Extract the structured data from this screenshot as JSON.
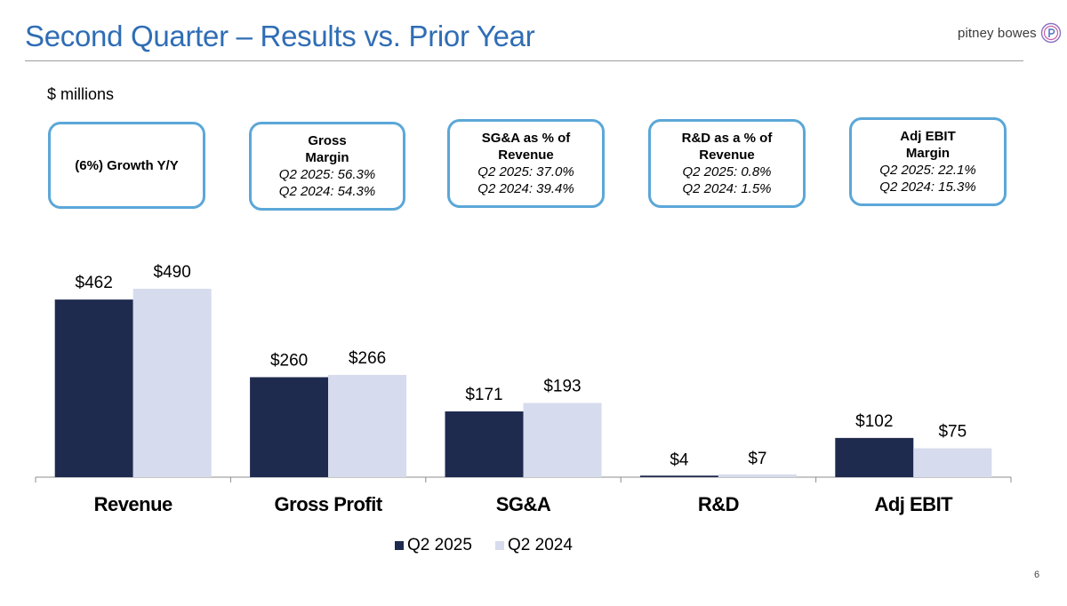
{
  "slide": {
    "title": "Second Quarter – Results vs. Prior Year",
    "units": "$ millions",
    "page_number": "6",
    "logo_text": "pitney bowes"
  },
  "callouts": [
    {
      "head": [
        "(6%) Growth Y/Y"
      ],
      "lines": []
    },
    {
      "head": [
        "Gross",
        "Margin"
      ],
      "lines": [
        "Q2 2025: 56.3%",
        "Q2 2024: 54.3%"
      ]
    },
    {
      "head": [
        "SG&A as % of",
        "Revenue"
      ],
      "lines": [
        "Q2 2025: 37.0%",
        "Q2 2024: 39.4%"
      ]
    },
    {
      "head": [
        "R&D as a % of",
        "Revenue"
      ],
      "lines": [
        "Q2 2025: 0.8%",
        "Q2 2024: 1.5%"
      ]
    },
    {
      "head": [
        "Adj EBIT",
        "Margin"
      ],
      "lines": [
        "Q2 2025: 22.1%",
        "Q2 2024: 15.3%"
      ]
    }
  ],
  "chart_data": {
    "type": "bar",
    "categories": [
      "Revenue",
      "Gross Profit",
      "SG&A",
      "R&D",
      "Adj EBIT"
    ],
    "series": [
      {
        "name": "Q2 2025",
        "values": [
          462,
          260,
          171,
          4,
          102
        ],
        "labels": [
          "$462",
          "$260",
          "$171",
          "$4",
          "$102"
        ],
        "color": "#1f2a4f"
      },
      {
        "name": "Q2 2024",
        "values": [
          490,
          266,
          193,
          7,
          75
        ],
        "labels": [
          "$490",
          "$266",
          "$193",
          "$7",
          "$75"
        ],
        "color": "#d6dbed"
      }
    ],
    "ylim": [
      0,
      490
    ],
    "grid": false,
    "legend": "bottom"
  },
  "colors": {
    "title": "#2f6db5",
    "callout_border": "#5ba7d8",
    "series_dark": "#1f2a4f",
    "series_light": "#d6dbed"
  }
}
